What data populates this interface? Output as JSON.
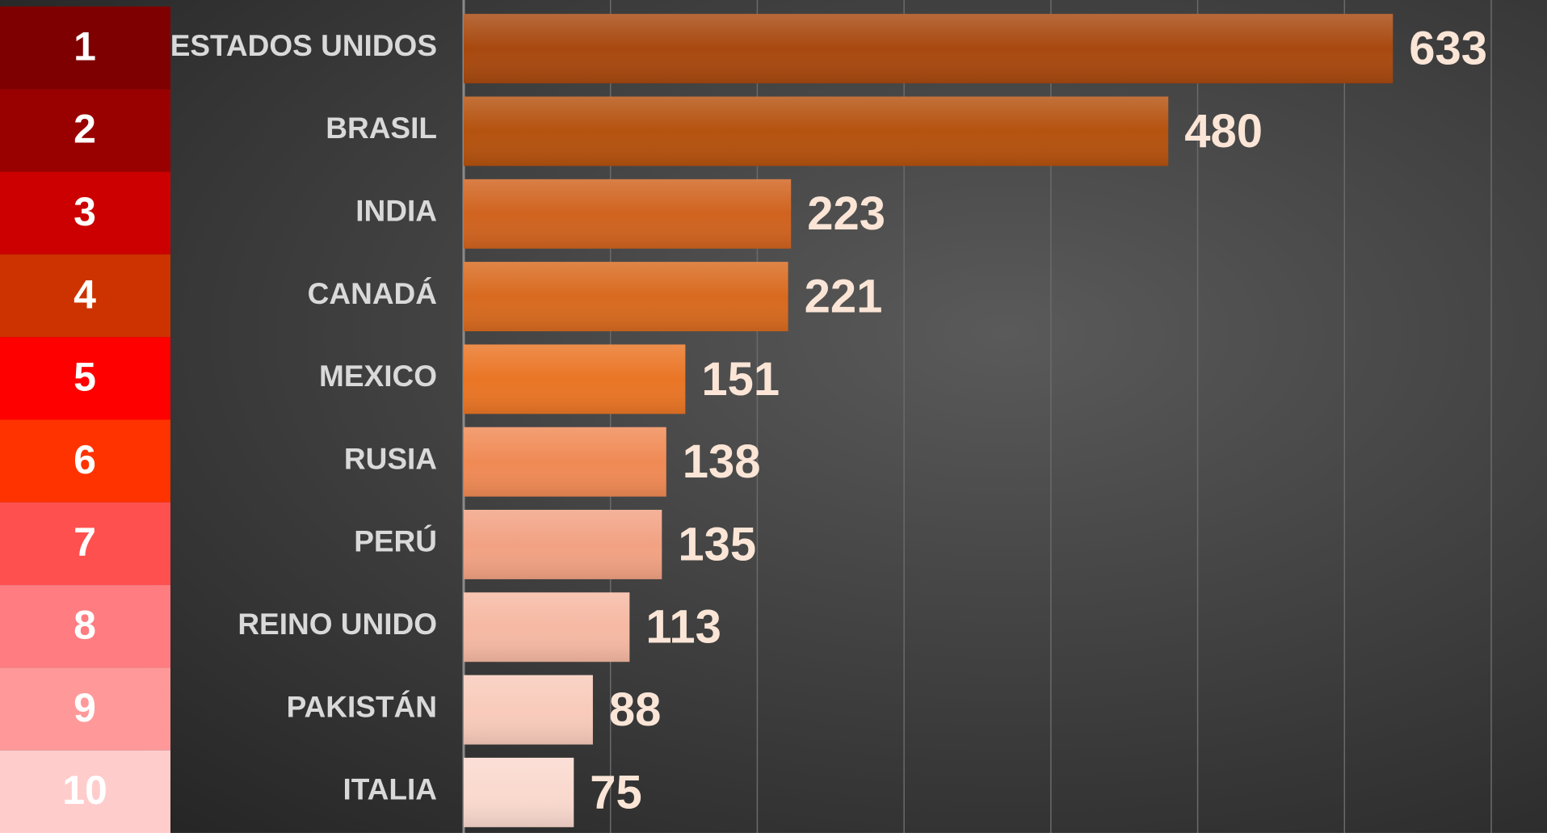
{
  "chart_data": {
    "type": "bar",
    "orientation": "horizontal",
    "ranks": [
      1,
      2,
      3,
      4,
      5,
      6,
      7,
      8,
      9,
      10
    ],
    "rank_colors": [
      "#7f0000",
      "#990000",
      "#cc0000",
      "#cc3300",
      "#ff0000",
      "#ff3300",
      "#ff5050",
      "#ff7c80",
      "#ff9999",
      "#ffcccc"
    ],
    "categories": [
      "ESTADOS UNIDOS",
      "BRASIL",
      "INDIA",
      "CANADÁ",
      "MEXICO",
      "RUSIA",
      "PERÚ",
      "REINO UNIDO",
      "PAKISTÁN",
      "ITALIA"
    ],
    "values": [
      633,
      480,
      223,
      221,
      151,
      138,
      135,
      113,
      88,
      75
    ],
    "colors": [
      "#a8490f",
      "#b5520f",
      "#d0631f",
      "#d86a1f",
      "#ea7525",
      "#f08a55",
      "#f2a283",
      "#f6b9a3",
      "#f8cbbb",
      "#fad9ce"
    ],
    "xlim": [
      0,
      700
    ],
    "xticks": [
      0,
      100,
      200,
      300,
      400,
      500,
      600,
      700
    ],
    "grid": true
  }
}
